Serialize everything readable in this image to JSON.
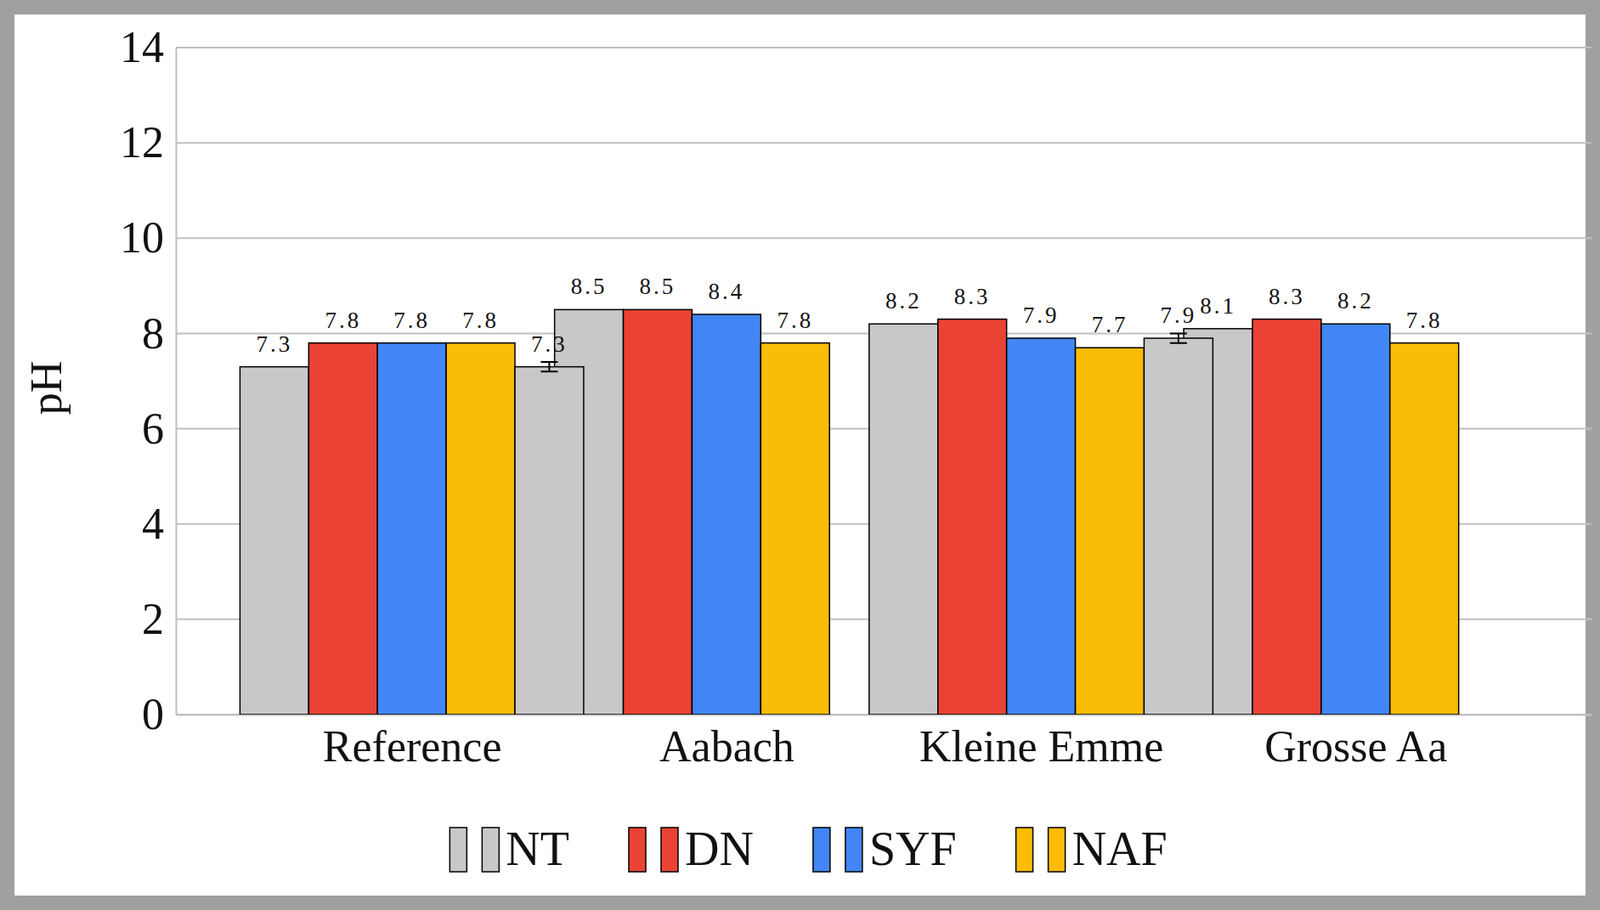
{
  "chart_data": {
    "type": "bar",
    "y_label": "pH",
    "categories": [
      "Reference",
      "Aabach",
      "Kleine Emme",
      "Grosse Aa"
    ],
    "series": [
      {
        "name": "NT",
        "color": "#c8c8c8",
        "values": [
          7.3,
          8.5,
          8.2,
          8.1
        ]
      },
      {
        "name": "DN",
        "color": "#ea4335",
        "values": [
          7.8,
          8.5,
          8.3,
          8.3
        ]
      },
      {
        "name": "SYF",
        "color": "#4285f4",
        "values": [
          7.8,
          8.4,
          7.9,
          8.2
        ]
      },
      {
        "name": "NAF",
        "color": "#fbbc05",
        "values": [
          7.8,
          7.8,
          7.7,
          7.8
        ]
      },
      {
        "color": "#c8c8c8",
        "values": [
          7.3,
          null,
          7.9,
          null
        ],
        "errors": [
          0.1,
          null,
          0.1,
          null
        ]
      }
    ],
    "ylim": [
      0,
      14
    ],
    "yticks": [
      0,
      2,
      4,
      6,
      8,
      10,
      12,
      14
    ],
    "grid": true,
    "legend": "bottom",
    "data_labels": true
  }
}
